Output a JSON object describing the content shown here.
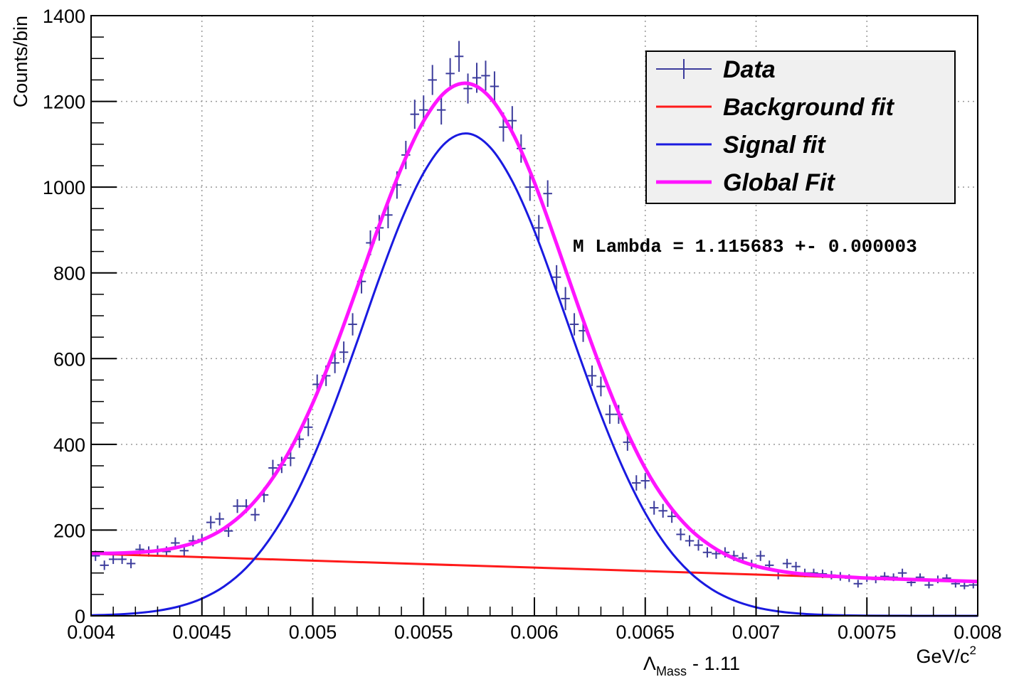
{
  "chart_data": {
    "type": "histogram",
    "y_label": "Counts/bin",
    "x_label": {
      "symbol": "Λ",
      "subscript": "Mass",
      "text": "- 1.11"
    },
    "x_unit": {
      "text": "GeV/c",
      "superscript": "2"
    },
    "annotation": "M Lambda = 1.115683 +- 0.000003",
    "xlim": [
      0.004,
      0.008
    ],
    "xticks": [
      0.004,
      0.0045,
      0.005,
      0.0055,
      0.006,
      0.0065,
      0.007,
      0.0075,
      0.008
    ],
    "ylim": [
      0,
      1400
    ],
    "yticks": [
      0,
      200,
      400,
      600,
      800,
      1000,
      1200,
      1400
    ],
    "grid": true,
    "legend": "top-right",
    "data": {
      "name": "Data",
      "color": "#3c3c9c",
      "bins": [
        0.004,
        0.00404,
        0.00408,
        0.00412,
        0.00416,
        0.0042,
        0.00424,
        0.00428,
        0.00432,
        0.00436,
        0.0044,
        0.00444,
        0.00448,
        0.00452,
        0.00456,
        0.0046,
        0.00464,
        0.00468,
        0.00472,
        0.00476,
        0.0048,
        0.00484,
        0.00488,
        0.00492,
        0.00496,
        0.005,
        0.00504,
        0.00508,
        0.00512,
        0.00516,
        0.0052,
        0.00524,
        0.00528,
        0.00532,
        0.00536,
        0.0054,
        0.00544,
        0.00548,
        0.00552,
        0.00556,
        0.0056,
        0.00564,
        0.00568,
        0.00572,
        0.00576,
        0.0058,
        0.00584,
        0.00588,
        0.00592,
        0.00596,
        0.006,
        0.00604,
        0.00608,
        0.00612,
        0.00616,
        0.0062,
        0.00624,
        0.00628,
        0.00632,
        0.00636,
        0.0064,
        0.00644,
        0.00648,
        0.00652,
        0.00656,
        0.0066,
        0.00664,
        0.00668,
        0.00672,
        0.00676,
        0.0068,
        0.00684,
        0.00688,
        0.00692,
        0.00696,
        0.007,
        0.00704,
        0.00708,
        0.00712,
        0.00716,
        0.0072,
        0.00724,
        0.00728,
        0.00732,
        0.00736,
        0.0074,
        0.00744,
        0.00748,
        0.00752,
        0.00756,
        0.0076,
        0.00764,
        0.00768,
        0.00772,
        0.00776,
        0.0078,
        0.00784,
        0.00788,
        0.00792,
        0.00796,
        0.008
      ],
      "values": [
        140,
        118,
        132,
        132,
        122,
        155,
        150,
        152,
        150,
        170,
        152,
        175,
        178,
        218,
        226,
        198,
        256,
        256,
        236,
        282,
        345,
        352,
        368,
        412,
        440,
        540,
        560,
        590,
        615,
        680,
        780,
        870,
        905,
        935,
        1005,
        1075,
        1170,
        1180,
        1250,
        1180,
        1265,
        1305,
        1230,
        1255,
        1260,
        1235,
        1140,
        1155,
        1090,
        1000,
        905,
        985,
        790,
        740,
        680,
        665,
        560,
        535,
        470,
        470,
        405,
        310,
        315,
        252,
        245,
        232,
        190,
        175,
        165,
        148,
        145,
        148,
        140,
        135,
        120,
        140,
        118,
        95,
        122,
        115,
        100,
        100,
        98,
        95,
        92,
        88,
        75,
        88,
        85,
        92,
        90,
        100,
        78,
        90,
        72,
        85,
        88,
        75,
        70,
        72
      ],
      "errors": [
        12,
        11,
        11,
        11,
        11,
        12,
        12,
        12,
        12,
        13,
        12,
        13,
        13,
        15,
        15,
        14,
        16,
        16,
        15,
        17,
        19,
        19,
        19,
        20,
        21,
        23,
        24,
        24,
        25,
        26,
        28,
        29,
        30,
        31,
        32,
        33,
        34,
        34,
        35,
        34,
        36,
        36,
        35,
        35,
        35,
        35,
        34,
        34,
        33,
        32,
        30,
        31,
        28,
        27,
        26,
        26,
        24,
        23,
        22,
        22,
        20,
        18,
        18,
        16,
        16,
        15,
        14,
        13,
        13,
        12,
        12,
        12,
        12,
        12,
        11,
        12,
        11,
        10,
        11,
        11,
        10,
        10,
        10,
        10,
        10,
        9,
        9,
        9,
        9,
        10,
        9,
        10,
        9,
        9,
        8,
        9,
        9,
        9,
        8,
        8
      ]
    },
    "series": [
      {
        "name": "Background fit",
        "color": "#ff1a1a",
        "x": [
          0.004,
          0.008
        ],
        "values": [
          145,
          80
        ]
      },
      {
        "name": "Signal fit",
        "color": "#1a1ae0",
        "x": [
          0.004,
          0.0041,
          0.0042,
          0.0043,
          0.0044,
          0.0045,
          0.0046,
          0.0047,
          0.0048,
          0.0049,
          0.005,
          0.0051,
          0.0052,
          0.0053,
          0.0054,
          0.0055,
          0.0056,
          0.0057,
          0.0058,
          0.0059,
          0.006,
          0.0061,
          0.0062,
          0.0063,
          0.0064,
          0.0065,
          0.0066,
          0.0067,
          0.0068,
          0.0069,
          0.007,
          0.0071,
          0.0072,
          0.0073,
          0.0074,
          0.0075,
          0.0076,
          0.0077,
          0.0078,
          0.0079,
          0.008
        ],
        "values": [
          1.4,
          2.9,
          6.1,
          11.9,
          22.4,
          40.3,
          68.6,
          112,
          175,
          259,
          367,
          496,
          639,
          787,
          923,
          1033,
          1104,
          1125,
          1093,
          1014,
          898,
          757,
          610,
          469,
          344,
          240,
          160,
          102,
          62,
          36,
          19.8,
          10.4,
          5.2,
          2.5,
          1.2,
          0.5,
          0.2,
          0.1,
          0,
          0,
          0
        ]
      },
      {
        "name": "Global Fit",
        "color": "#ff14ff",
        "x": [
          0.004,
          0.0041,
          0.0042,
          0.0043,
          0.0044,
          0.0045,
          0.0046,
          0.0047,
          0.0048,
          0.0049,
          0.005,
          0.0051,
          0.0052,
          0.0053,
          0.0054,
          0.0055,
          0.0056,
          0.0057,
          0.0058,
          0.0059,
          0.006,
          0.0061,
          0.0062,
          0.0063,
          0.0064,
          0.0065,
          0.0066,
          0.0067,
          0.0068,
          0.0069,
          0.007,
          0.0071,
          0.0072,
          0.0073,
          0.0074,
          0.0075,
          0.0076,
          0.0077,
          0.0078,
          0.0079,
          0.008
        ],
        "values": [
          146,
          146,
          148,
          152,
          161,
          177,
          204,
          246,
          307,
          389,
          496,
          623,
          765,
          911,
          1045,
          1154,
          1223,
          1242,
          1209,
          1128,
          1011,
          868,
          719,
          577,
          450,
          344,
          263,
          203,
          162,
          134,
          116,
          105,
          98,
          94,
          91,
          88.1,
          86.5,
          84.9,
          83.25,
          81.6,
          80
        ]
      }
    ]
  }
}
